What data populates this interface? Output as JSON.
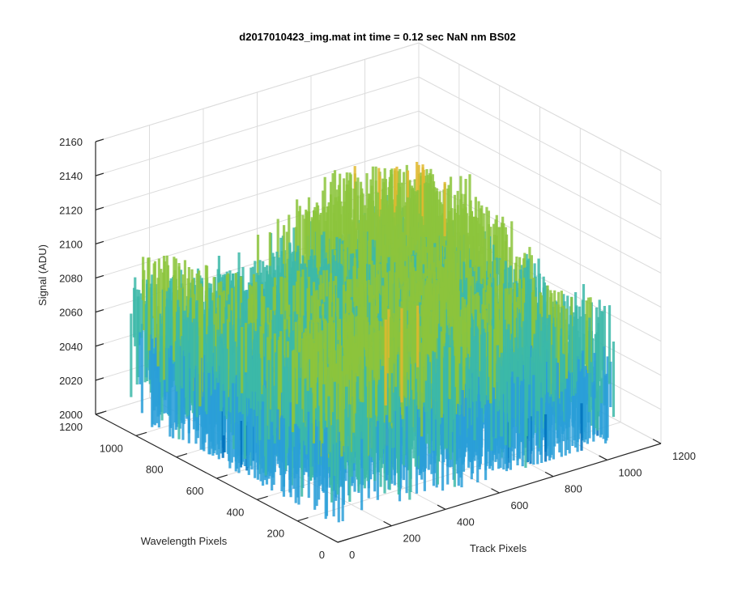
{
  "chart_data": {
    "type": "surface",
    "title": "d2017010423_img.mat int time = 0.12 sec  NaN nm BS02",
    "xlabel": "Track Pixels",
    "ylabel": "Wavelength Pixels",
    "zlabel": "Signal (ADU)",
    "xlim": [
      0,
      1200
    ],
    "ylim": [
      0,
      1200
    ],
    "zlim": [
      2000,
      2160
    ],
    "xticks": [
      "0",
      "200",
      "400",
      "600",
      "800",
      "1000",
      "1200"
    ],
    "yticks": [
      "0",
      "200",
      "400",
      "600",
      "800",
      "1000",
      "1200"
    ],
    "zticks": [
      "2000",
      "2020",
      "2040",
      "2060",
      "2080",
      "2100",
      "2120",
      "2140",
      "2160"
    ],
    "colormap": [
      "#0072bd",
      "#2a9fd8",
      "#3cb8a8",
      "#8cc43c",
      "#e0b82e"
    ],
    "grid": true,
    "surface_summary": {
      "x_range": [
        0,
        1024
      ],
      "y_range": [
        0,
        1024
      ],
      "z_min": 2010,
      "z_max": 2150,
      "z_typical": 2075
    }
  }
}
